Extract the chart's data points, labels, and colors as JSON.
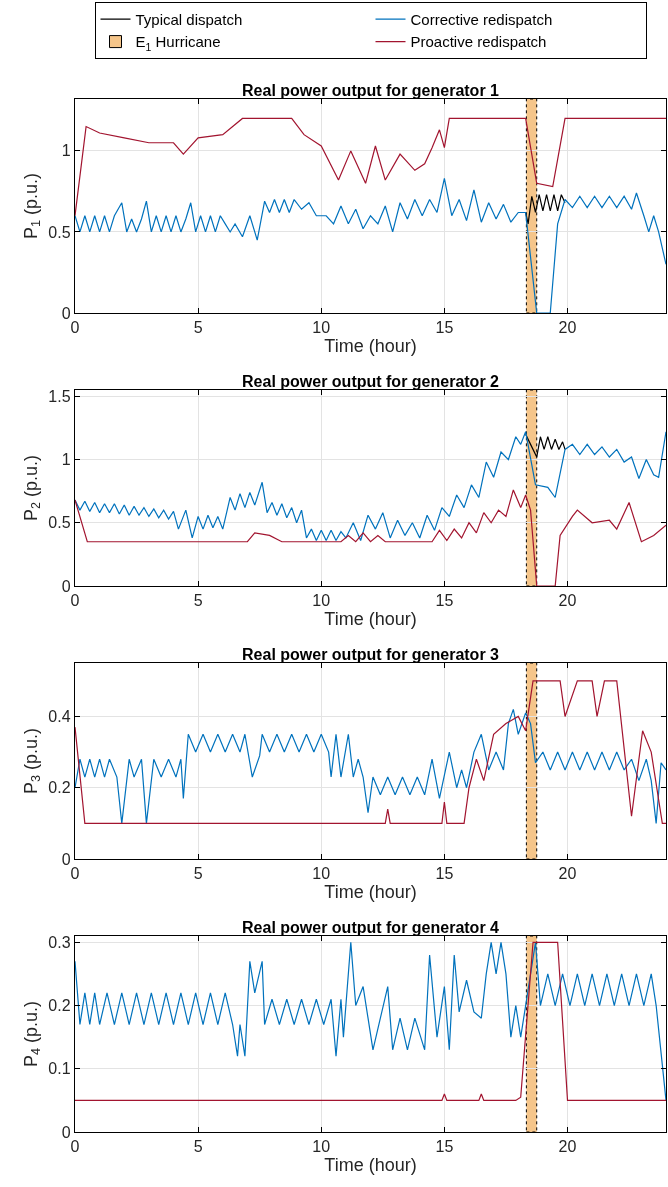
{
  "chart_data": [
    {
      "type": "line",
      "title": "Real power output for generator 1",
      "xlabel": "Time (hour)",
      "ylabel": "P$_{1}$ (p.u.)",
      "xlim": [
        0,
        24
      ],
      "xticks": [
        0,
        5,
        10,
        15,
        20
      ],
      "ylim": [
        0,
        1.32
      ],
      "yticks": [
        0,
        0.5,
        1
      ],
      "grid": true,
      "legend": "top",
      "bands": [
        {
          "axis": "x",
          "from": 18.33,
          "to": 18.75,
          "label": "E$_{1}$ Hurricane",
          "color": "#f5c58a"
        }
      ],
      "series": [
        {
          "name": "Typical dispatch",
          "color": "#000000",
          "x": [
            18.3,
            18.4,
            18.55,
            18.7,
            18.85,
            19,
            19.15,
            19.3,
            19.45,
            19.6,
            19.75,
            19.9
          ],
          "values": [
            0.62,
            0.55,
            0.72,
            0.62,
            0.73,
            0.63,
            0.73,
            0.63,
            0.73,
            0.63,
            0.73,
            0.68
          ]
        },
        {
          "name": "Corrective redispatch",
          "color": "#0072bd",
          "x": [
            0,
            0.2,
            0.4,
            0.6,
            0.8,
            1,
            1.2,
            1.4,
            1.6,
            1.9,
            2.1,
            2.3,
            2.5,
            2.7,
            2.9,
            3.1,
            3.3,
            3.5,
            3.7,
            3.9,
            4.1,
            4.3,
            4.5,
            4.7,
            4.9,
            5.1,
            5.3,
            5.5,
            5.7,
            5.9,
            6.1,
            6.3,
            6.5,
            6.8,
            7.1,
            7.4,
            7.7,
            7.9,
            8.1,
            8.3,
            8.5,
            8.7,
            8.9,
            9.2,
            9.5,
            9.8,
            10.2,
            10.5,
            10.8,
            11.1,
            11.4,
            11.7,
            12,
            12.3,
            12.6,
            12.9,
            13.2,
            13.5,
            13.8,
            14.1,
            14.4,
            14.7,
            15,
            15.3,
            15.6,
            15.9,
            16.2,
            16.5,
            16.8,
            17.1,
            17.4,
            17.7,
            18,
            18.3,
            18.75,
            19.3,
            19.6,
            19.9,
            20.2,
            20.5,
            20.8,
            21.1,
            21.4,
            21.7,
            22,
            22.3,
            22.6,
            22.8,
            23.1,
            23.3,
            23.5,
            23.7,
            24
          ],
          "values": [
            0.6,
            0.5,
            0.6,
            0.5,
            0.6,
            0.5,
            0.6,
            0.5,
            0.6,
            0.68,
            0.5,
            0.58,
            0.5,
            0.58,
            0.69,
            0.5,
            0.6,
            0.5,
            0.6,
            0.5,
            0.6,
            0.5,
            0.58,
            0.68,
            0.5,
            0.6,
            0.5,
            0.6,
            0.5,
            0.6,
            0.55,
            0.5,
            0.55,
            0.47,
            0.6,
            0.45,
            0.69,
            0.62,
            0.7,
            0.62,
            0.7,
            0.62,
            0.7,
            0.64,
            0.68,
            0.6,
            0.6,
            0.55,
            0.66,
            0.55,
            0.64,
            0.52,
            0.6,
            0.55,
            0.66,
            0.5,
            0.68,
            0.58,
            0.7,
            0.6,
            0.7,
            0.62,
            0.83,
            0.6,
            0.7,
            0.57,
            0.76,
            0.56,
            0.68,
            0.58,
            0.67,
            0.56,
            0.62,
            0.62,
            0,
            0,
            0.55,
            0.7,
            0.65,
            0.72,
            0.65,
            0.72,
            0.65,
            0.72,
            0.65,
            0.72,
            0.64,
            0.74,
            0.6,
            0.5,
            0.6,
            0.5,
            0.3
          ]
        },
        {
          "name": "Proactive redispatch",
          "color": "#a2142f",
          "x": [
            0,
            0.45,
            1,
            2,
            3,
            4,
            4.4,
            5,
            6,
            6.8,
            8.8,
            9.3,
            10,
            10.7,
            11.2,
            11.8,
            12.2,
            12.6,
            13.2,
            13.8,
            14.2,
            14.5,
            14.8,
            15,
            15.2,
            18.3,
            18.75,
            19.4,
            19.9,
            24
          ],
          "values": [
            0.6,
            1.15,
            1.11,
            1.08,
            1.05,
            1.05,
            0.98,
            1.08,
            1.1,
            1.2,
            1.2,
            1.1,
            1.03,
            0.82,
            1.0,
            0.8,
            1.03,
            0.82,
            0.98,
            0.88,
            0.92,
            1.02,
            1.13,
            1.02,
            1.2,
            1.2,
            0.8,
            0.78,
            1.2,
            1.2
          ]
        }
      ]
    },
    {
      "type": "line",
      "title": "Real power output for generator 2",
      "xlabel": "Time (hour)",
      "ylabel": "P$_{2}$ (p.u.)",
      "xlim": [
        0,
        24
      ],
      "xticks": [
        0,
        5,
        10,
        15,
        20
      ],
      "ylim": [
        0,
        1.55
      ],
      "yticks": [
        0,
        0.5,
        1,
        1.5
      ],
      "grid": true,
      "bands": [
        {
          "axis": "x",
          "from": 18.33,
          "to": 18.75,
          "color": "#f5c58a"
        }
      ],
      "series": [
        {
          "color": "#000000",
          "x": [
            18.3,
            18.5,
            18.75,
            18.9,
            19.05,
            19.2,
            19.35,
            19.5,
            19.65,
            19.8,
            19.9
          ],
          "values": [
            1.2,
            1.12,
            1.02,
            1.18,
            1.08,
            1.18,
            1.08,
            1.16,
            1.08,
            1.14,
            1.08
          ]
        },
        {
          "color": "#0072bd",
          "x": [
            0,
            0.2,
            0.4,
            0.6,
            0.8,
            1,
            1.2,
            1.4,
            1.6,
            1.8,
            2,
            2.2,
            2.4,
            2.6,
            2.8,
            3,
            3.2,
            3.4,
            3.6,
            3.8,
            4,
            4.2,
            4.5,
            4.76,
            5,
            5.2,
            5.4,
            5.6,
            5.8,
            6,
            6.3,
            6.5,
            6.7,
            6.9,
            7.1,
            7.3,
            7.6,
            7.8,
            8,
            8.2,
            8.4,
            8.6,
            8.8,
            9,
            9.2,
            9.4,
            9.6,
            9.8,
            10,
            10.2,
            10.4,
            10.6,
            10.8,
            11,
            11.3,
            11.6,
            11.9,
            12.2,
            12.5,
            12.8,
            13.1,
            13.4,
            13.7,
            14,
            14.3,
            14.6,
            14.9,
            15.2,
            15.5,
            15.8,
            16.1,
            16.4,
            16.7,
            17,
            17.3,
            17.6,
            17.9,
            18.1,
            18.3,
            18.7,
            19.2,
            19.5,
            19.9,
            20.2,
            20.5,
            20.8,
            21.1,
            21.4,
            21.7,
            22,
            22.3,
            22.6,
            22.9,
            23.2,
            23.5,
            23.7,
            24
          ],
          "values": [
            0.68,
            0.6,
            0.67,
            0.59,
            0.66,
            0.58,
            0.65,
            0.58,
            0.65,
            0.57,
            0.64,
            0.56,
            0.63,
            0.56,
            0.62,
            0.55,
            0.61,
            0.54,
            0.6,
            0.53,
            0.59,
            0.45,
            0.6,
            0.38,
            0.55,
            0.45,
            0.56,
            0.46,
            0.55,
            0.45,
            0.7,
            0.6,
            0.73,
            0.62,
            0.74,
            0.64,
            0.82,
            0.58,
            0.66,
            0.56,
            0.65,
            0.54,
            0.62,
            0.5,
            0.6,
            0.38,
            0.45,
            0.36,
            0.44,
            0.36,
            0.44,
            0.36,
            0.43,
            0.38,
            0.5,
            0.36,
            0.56,
            0.45,
            0.58,
            0.38,
            0.52,
            0.4,
            0.5,
            0.38,
            0.56,
            0.44,
            0.62,
            0.55,
            0.72,
            0.62,
            0.8,
            0.7,
            0.98,
            0.86,
            1.06,
            1.0,
            1.18,
            1.12,
            1.22,
            0.8,
            0.78,
            0.7,
            1.08,
            1.12,
            1.04,
            1.12,
            1.04,
            1.1,
            1.02,
            1.08,
            0.98,
            1.02,
            0.85,
            1.0,
            0.88,
            0.86,
            1.22
          ]
        },
        {
          "color": "#a2142f",
          "x": [
            0,
            0.5,
            7,
            7.3,
            7.9,
            8.4,
            10.8,
            11.1,
            11.4,
            11.7,
            12,
            12.3,
            12.6,
            13,
            14.5,
            14.8,
            15.1,
            15.4,
            15.7,
            16,
            16.3,
            16.6,
            16.9,
            17.2,
            17.5,
            17.8,
            18.1,
            18.3,
            18.5,
            18.75,
            19.5,
            19.7,
            20.2,
            20.4,
            21,
            21.7,
            22,
            22.5,
            23,
            23.5,
            24
          ],
          "values": [
            0.68,
            0.35,
            0.35,
            0.42,
            0.4,
            0.35,
            0.35,
            0.4,
            0.35,
            0.42,
            0.35,
            0.4,
            0.35,
            0.35,
            0.35,
            0.44,
            0.36,
            0.45,
            0.38,
            0.5,
            0.42,
            0.58,
            0.5,
            0.6,
            0.55,
            0.76,
            0.62,
            0.72,
            0.6,
            0,
            0,
            0.4,
            0.55,
            0.6,
            0.5,
            0.52,
            0.45,
            0.66,
            0.35,
            0.4,
            0.48
          ]
        }
      ]
    },
    {
      "type": "line",
      "title": "Real power output for generator 3",
      "xlabel": "Time (hour)",
      "ylabel": "P$_{3}$ (p.u.)",
      "xlim": [
        0,
        24
      ],
      "xticks": [
        0,
        5,
        10,
        15,
        20
      ],
      "ylim": [
        0,
        0.55
      ],
      "yticks": [
        0,
        0.2,
        0.4
      ],
      "grid": true,
      "bands": [
        {
          "axis": "x",
          "from": 18.33,
          "to": 18.75,
          "color": "#f5c58a"
        }
      ],
      "series": [
        {
          "color": "#0072bd",
          "x": [
            0,
            0.2,
            0.4,
            0.6,
            0.8,
            1,
            1.2,
            1.4,
            1.7,
            1.9,
            2.2,
            2.4,
            2.7,
            2.9,
            3.2,
            3.5,
            3.8,
            4.1,
            4.3,
            4.4,
            4.6,
            4.9,
            5.2,
            5.5,
            5.8,
            6.1,
            6.4,
            6.7,
            6.9,
            7.2,
            7.5,
            7.6,
            7.9,
            8.2,
            8.5,
            8.8,
            9.1,
            9.4,
            9.7,
            10,
            10.3,
            10.4,
            10.6,
            10.8,
            11.1,
            11.3,
            11.5,
            11.7,
            11.9,
            12.1,
            12.4,
            12.7,
            13,
            13.3,
            13.6,
            13.9,
            14.2,
            14.5,
            14.8,
            15.2,
            15.5,
            15.7,
            15.9,
            16.2,
            16.5,
            16.8,
            17.1,
            17.4,
            17.6,
            17.8,
            18,
            18.3,
            18.5,
            18.7,
            19,
            19.3,
            19.6,
            19.9,
            20.2,
            20.5,
            20.8,
            21.1,
            21.4,
            21.7,
            22,
            22.3,
            22.6,
            22.9,
            23.2,
            23.4,
            23.6,
            23.8,
            24
          ],
          "values": [
            0.2,
            0.28,
            0.23,
            0.28,
            0.23,
            0.28,
            0.23,
            0.28,
            0.23,
            0.1,
            0.28,
            0.23,
            0.28,
            0.1,
            0.28,
            0.23,
            0.28,
            0.23,
            0.28,
            0.17,
            0.35,
            0.3,
            0.35,
            0.3,
            0.35,
            0.3,
            0.35,
            0.3,
            0.35,
            0.23,
            0.29,
            0.35,
            0.3,
            0.35,
            0.3,
            0.35,
            0.3,
            0.35,
            0.3,
            0.35,
            0.3,
            0.23,
            0.35,
            0.23,
            0.35,
            0.23,
            0.28,
            0.23,
            0.13,
            0.23,
            0.18,
            0.23,
            0.18,
            0.23,
            0.18,
            0.23,
            0.18,
            0.28,
            0.17,
            0.3,
            0.2,
            0.25,
            0.2,
            0.3,
            0.35,
            0.25,
            0.3,
            0.25,
            0.38,
            0.42,
            0.35,
            0.41,
            0.38,
            0.27,
            0.3,
            0.25,
            0.3,
            0.25,
            0.3,
            0.25,
            0.3,
            0.25,
            0.3,
            0.25,
            0.3,
            0.25,
            0.28,
            0.22,
            0.28,
            0.22,
            0.1,
            0.27,
            0.25
          ]
        },
        {
          "color": "#a2142f",
          "x": [
            0,
            0.4,
            12.6,
            12.7,
            12.8,
            14.9,
            15,
            15.1,
            15.8,
            16,
            16.3,
            16.6,
            17,
            17.5,
            18,
            18.3,
            18.6,
            19.7,
            19.9,
            20.4,
            21,
            21.2,
            21.5,
            22,
            22.6,
            23.05,
            23.4,
            23.85,
            24
          ],
          "values": [
            0.37,
            0.1,
            0.1,
            0.14,
            0.1,
            0.1,
            0.16,
            0.1,
            0.1,
            0.2,
            0.28,
            0.22,
            0.35,
            0.38,
            0.4,
            0.36,
            0.5,
            0.5,
            0.4,
            0.5,
            0.5,
            0.4,
            0.5,
            0.5,
            0.12,
            0.36,
            0.3,
            0.1,
            0.1
          ]
        }
      ]
    },
    {
      "type": "line",
      "title": "Real power output for generator 4",
      "xlabel": "Time (hour)",
      "ylabel": "P$_{4}$ (p.u.)",
      "xlim": [
        0,
        24
      ],
      "xticks": [
        0,
        5,
        10,
        15,
        20
      ],
      "ylim": [
        0,
        0.31
      ],
      "yticks": [
        0,
        0.1,
        0.2,
        0.3
      ],
      "grid": true,
      "bands": [
        {
          "axis": "x",
          "from": 18.33,
          "to": 18.75,
          "color": "#f5c58a"
        }
      ],
      "series": [
        {
          "color": "#0072bd",
          "x": [
            0,
            0.2,
            0.4,
            0.6,
            0.8,
            1,
            1.3,
            1.6,
            1.9,
            2.2,
            2.5,
            2.8,
            3.1,
            3.4,
            3.7,
            4,
            4.3,
            4.6,
            4.9,
            5.2,
            5.5,
            5.8,
            6.1,
            6.4,
            6.6,
            6.7,
            6.9,
            7.1,
            7.3,
            7.6,
            7.7,
            8,
            8.3,
            8.6,
            8.9,
            9.2,
            9.5,
            9.8,
            10.1,
            10.4,
            10.6,
            10.8,
            10.9,
            11.2,
            11.4,
            11.7,
            11.9,
            12.1,
            12.4,
            12.7,
            12.9,
            13.2,
            13.5,
            13.8,
            14.2,
            14.4,
            14.7,
            15,
            15.2,
            15.4,
            15.6,
            15.9,
            16.2,
            16.5,
            16.7,
            16.9,
            17.1,
            17.3,
            17.5,
            17.7,
            17.9,
            18.1,
            18.3,
            18.7,
            18.9,
            19.2,
            19.5,
            19.8,
            20.1,
            20.4,
            20.7,
            21,
            21.3,
            21.6,
            21.9,
            22.2,
            22.5,
            22.8,
            23.1,
            23.4,
            23.6,
            24
          ],
          "values": [
            0.27,
            0.17,
            0.22,
            0.17,
            0.22,
            0.17,
            0.22,
            0.17,
            0.22,
            0.17,
            0.22,
            0.17,
            0.22,
            0.17,
            0.22,
            0.17,
            0.22,
            0.17,
            0.22,
            0.17,
            0.22,
            0.17,
            0.22,
            0.17,
            0.12,
            0.17,
            0.12,
            0.27,
            0.22,
            0.27,
            0.17,
            0.21,
            0.17,
            0.21,
            0.17,
            0.21,
            0.17,
            0.21,
            0.17,
            0.21,
            0.12,
            0.21,
            0.15,
            0.3,
            0.2,
            0.23,
            0.18,
            0.13,
            0.18,
            0.23,
            0.13,
            0.18,
            0.13,
            0.18,
            0.13,
            0.28,
            0.15,
            0.23,
            0.13,
            0.28,
            0.19,
            0.24,
            0.19,
            0.18,
            0.25,
            0.3,
            0.25,
            0.3,
            0.25,
            0.15,
            0.2,
            0.15,
            0.2,
            0.3,
            0.2,
            0.25,
            0.2,
            0.25,
            0.2,
            0.25,
            0.2,
            0.25,
            0.2,
            0.25,
            0.2,
            0.25,
            0.2,
            0.25,
            0.2,
            0.25,
            0.2,
            0.05
          ]
        },
        {
          "color": "#a2142f",
          "x": [
            0,
            14.9,
            15,
            15.1,
            16.4,
            16.5,
            16.6,
            17.9,
            18.1,
            18.6,
            19.6,
            20,
            24
          ],
          "values": [
            0.05,
            0.05,
            0.06,
            0.05,
            0.05,
            0.06,
            0.05,
            0.05,
            0.055,
            0.3,
            0.3,
            0.05,
            0.05
          ]
        }
      ]
    }
  ]
}
